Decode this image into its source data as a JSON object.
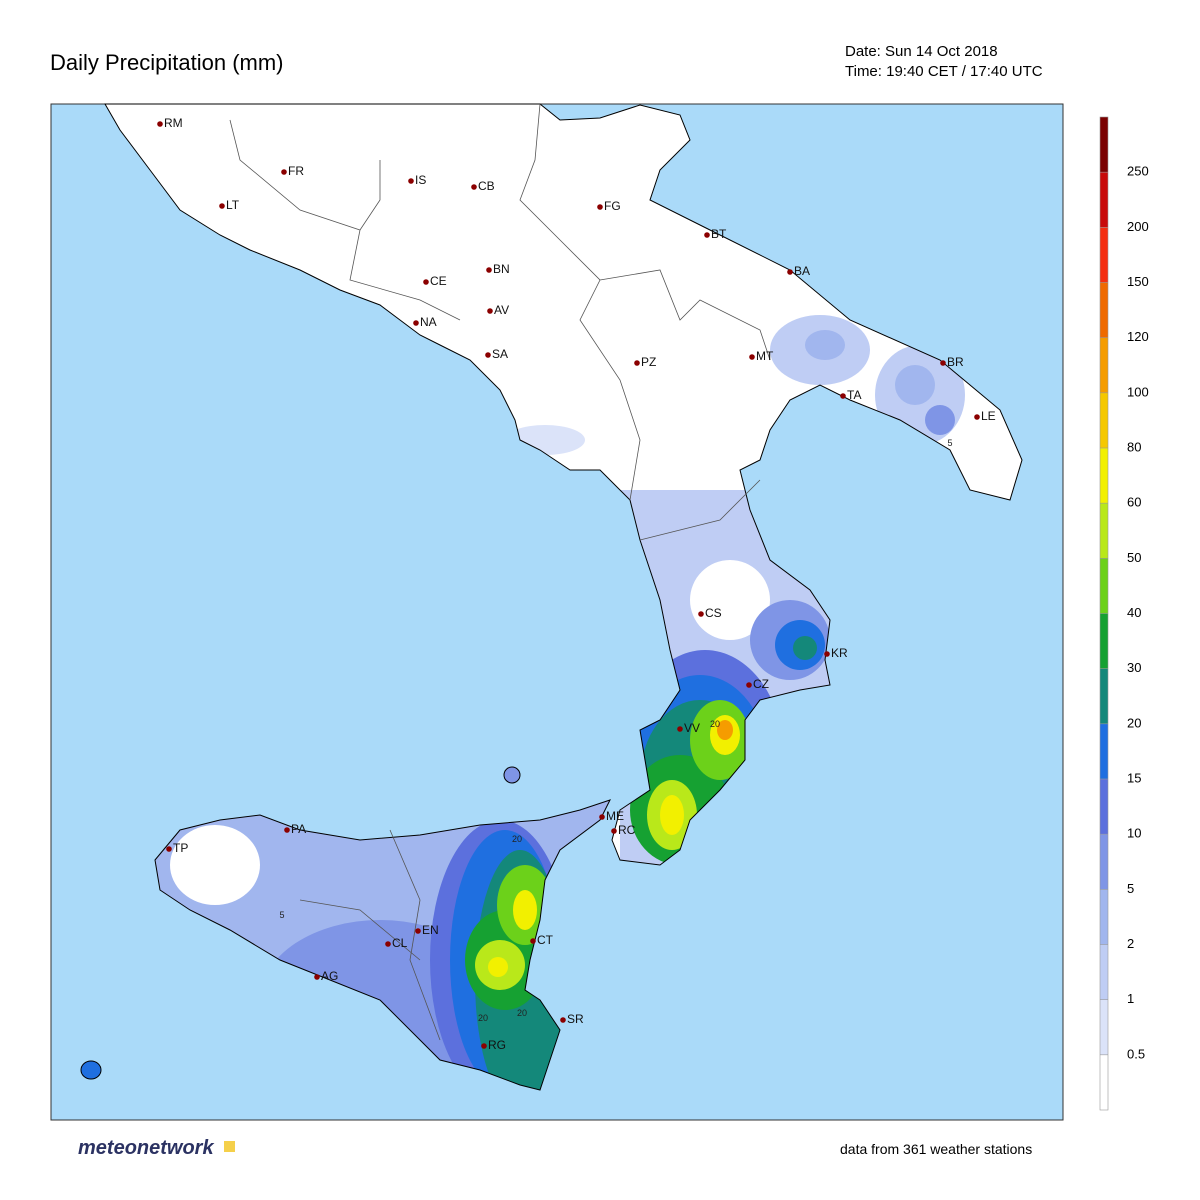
{
  "header": {
    "title": "Daily Precipitation (mm)",
    "date": "Date: Sun 14 Oct 2018",
    "time": "Time: 19:40 CET / 17:40 UTC"
  },
  "map": {
    "cities": [
      "RM",
      "FR",
      "IS",
      "CB",
      "FG",
      "LT",
      "BT",
      "BA",
      "CE",
      "BN",
      "AV",
      "NA",
      "SA",
      "PZ",
      "MT",
      "BR",
      "TA",
      "LE",
      "CS",
      "KR",
      "CZ",
      "VV",
      "ME",
      "RC",
      "PA",
      "TP",
      "EN",
      "CL",
      "CT",
      "AG",
      "SR",
      "RG"
    ],
    "contour_labels": [
      20,
      20,
      20,
      20,
      5,
      5
    ]
  },
  "colorbar": {
    "levels": [
      0.5,
      1,
      2,
      5,
      10,
      15,
      20,
      30,
      40,
      50,
      60,
      80,
      100,
      120,
      150,
      200,
      250
    ],
    "colors": [
      "#ffffff",
      "#dbe3f9",
      "#bfcdf4",
      "#a1b6ee",
      "#7f95e6",
      "#5c70dd",
      "#1f6fe0",
      "#14887a",
      "#16a132",
      "#6cd11a",
      "#b9e81a",
      "#f2f000",
      "#f5c800",
      "#f59c00",
      "#ef6a00",
      "#f42e10",
      "#c80a0a",
      "#7a0000"
    ]
  },
  "footer": {
    "logo": "meteonetwork",
    "source": "data from 361 weather stations"
  }
}
